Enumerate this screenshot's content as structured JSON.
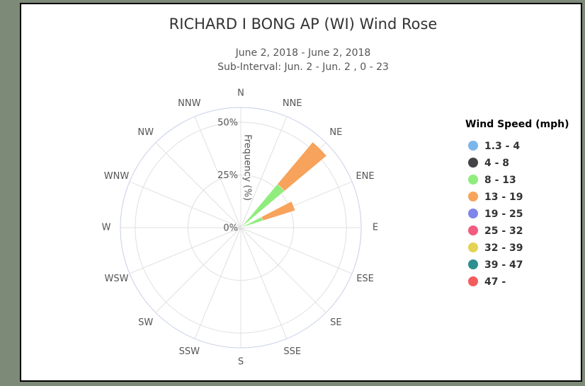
{
  "chart_data": {
    "type": "windrose",
    "title": "RICHARD I BONG AP (WI) Wind Rose",
    "subtitle": [
      "June 2, 2018 - June 2, 2018",
      "Sub-Interval: Jun. 2 - Jun. 2 , 0 - 23"
    ],
    "y_label": "Frequency (%)",
    "legend_title": "Wind Speed (mph)",
    "categories": [
      "N",
      "NNE",
      "NE",
      "ENE",
      "E",
      "ESE",
      "SE",
      "SSE",
      "S",
      "SSW",
      "SW",
      "WSW",
      "W",
      "WNW",
      "NW",
      "NNW"
    ],
    "ylim": [
      0,
      57
    ],
    "yticks": [
      {
        "value": 0,
        "label": "0%"
      },
      {
        "value": 25,
        "label": "25%"
      },
      {
        "value": 50,
        "label": "50%"
      }
    ],
    "grid": true,
    "series": [
      {
        "name": "1.3 - 4",
        "color": "#7cb5ec",
        "values": [
          0,
          0,
          0,
          0,
          0,
          0,
          0,
          0,
          0,
          0,
          0,
          0,
          0,
          0,
          0,
          0
        ]
      },
      {
        "name": "4 - 8",
        "color": "#434348",
        "values": [
          0,
          0,
          0,
          0,
          0,
          0,
          0,
          0,
          0,
          0,
          0,
          0,
          0,
          0,
          0,
          0
        ]
      },
      {
        "name": "8 - 13",
        "color": "#90ed7d",
        "values": [
          0,
          0,
          27,
          11,
          0,
          0,
          0,
          0,
          0,
          0,
          0,
          0,
          0,
          0,
          0,
          0
        ]
      },
      {
        "name": "13 - 19",
        "color": "#f7a35c",
        "values": [
          0,
          0,
          26,
          16,
          0,
          0,
          0,
          0,
          0,
          0,
          0,
          0,
          0,
          0,
          0,
          0
        ]
      },
      {
        "name": "19 - 25",
        "color": "#8085e9",
        "values": [
          0,
          0,
          0,
          0,
          0,
          0,
          0,
          0,
          0,
          0,
          0,
          0,
          0,
          0,
          0,
          0
        ]
      },
      {
        "name": "25 - 32",
        "color": "#f15c80",
        "values": [
          0,
          0,
          0,
          0,
          0,
          0,
          0,
          0,
          0,
          0,
          0,
          0,
          0,
          0,
          0,
          0
        ]
      },
      {
        "name": "32 - 39",
        "color": "#e4d354",
        "values": [
          0,
          0,
          0,
          0,
          0,
          0,
          0,
          0,
          0,
          0,
          0,
          0,
          0,
          0,
          0,
          0
        ]
      },
      {
        "name": "39 - 47",
        "color": "#2b908f",
        "values": [
          0,
          0,
          0,
          0,
          0,
          0,
          0,
          0,
          0,
          0,
          0,
          0,
          0,
          0,
          0,
          0
        ]
      },
      {
        "name": "47 -",
        "color": "#f45b5b",
        "values": [
          0,
          0,
          0,
          0,
          0,
          0,
          0,
          0,
          0,
          0,
          0,
          0,
          0,
          0,
          0,
          0
        ]
      }
    ]
  }
}
